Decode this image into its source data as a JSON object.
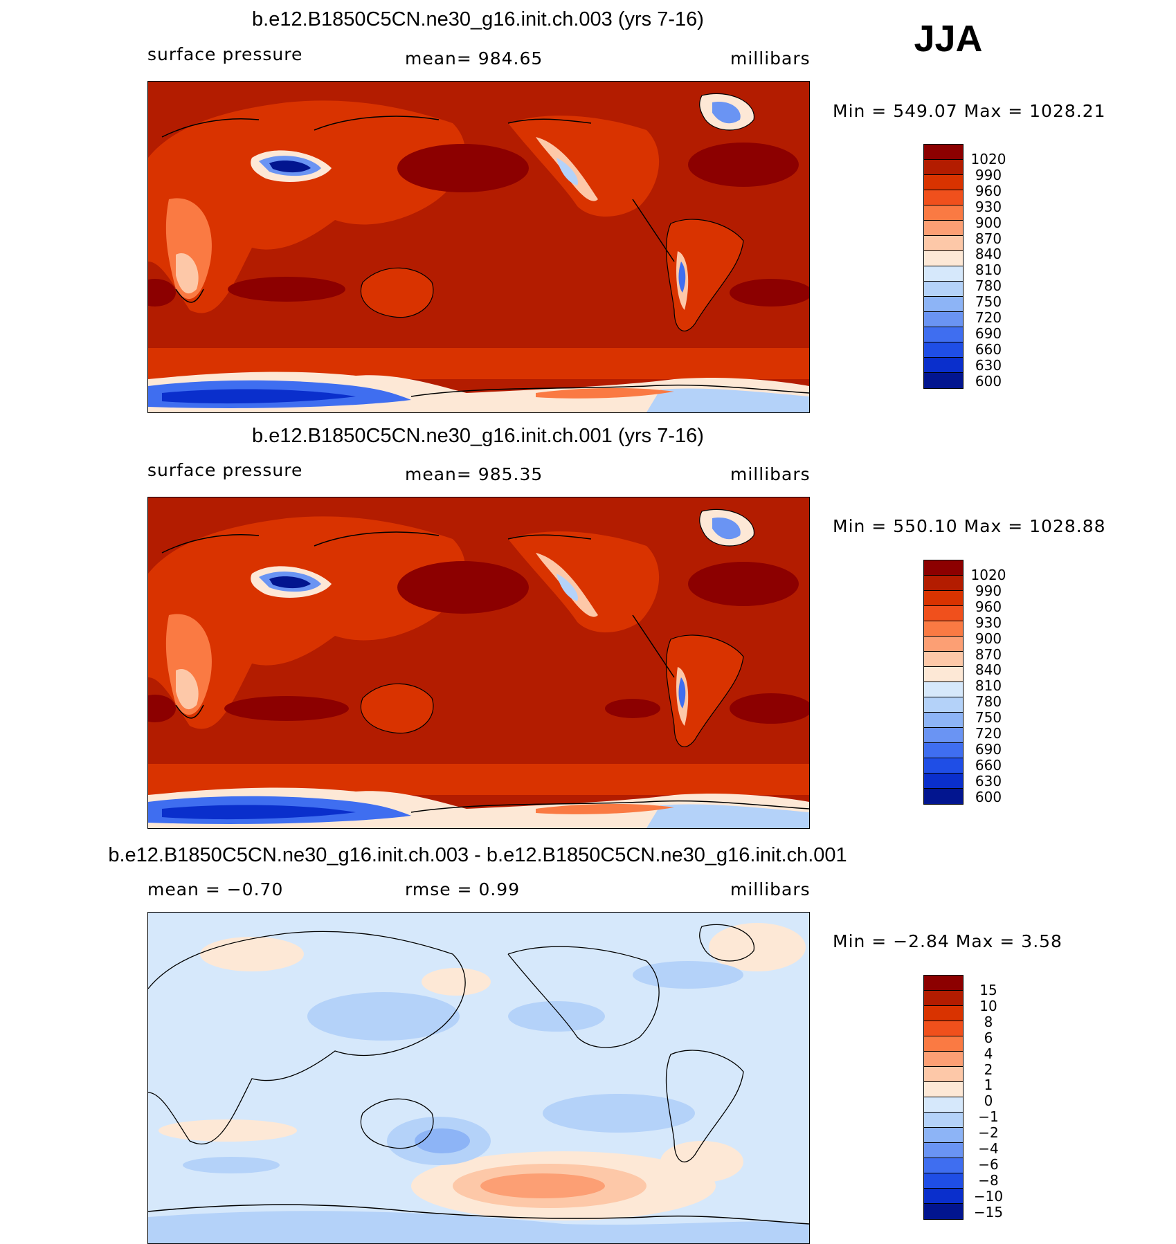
{
  "season": "JJA",
  "colors": {
    "abs_scale": [
      "#8c0000",
      "#b31c00",
      "#d93300",
      "#f0501c",
      "#fa7a43",
      "#fc9f74",
      "#fdc8a8",
      "#fde8d6",
      "#d6e8fb",
      "#b4d2f9",
      "#8db4f6",
      "#6a94f3",
      "#3f6ef0",
      "#1f4ee6",
      "#0a2fcc",
      "#02158f"
    ],
    "diff_scale": [
      "#8c0000",
      "#b31c00",
      "#d93300",
      "#f0501c",
      "#fa7a43",
      "#fc9f74",
      "#fdc8a8",
      "#fde8d6",
      "#d6e8fb",
      "#b4d2f9",
      "#8db4f6",
      "#6a94f3",
      "#3f6ef0",
      "#1f4ee6",
      "#0a2fcc",
      "#02158f"
    ]
  },
  "panels": [
    {
      "title": "b.e12.B1850C5CN.ne30_g16.init.ch.003 (yrs 7-16)",
      "left_label": "surface pressure",
      "center_label": "mean=  984.65",
      "right_label": "millibars",
      "minmax": "Min  =  549.07  Max  =  1028.21",
      "levels": [
        "1020",
        "990",
        "960",
        "930",
        "900",
        "870",
        "840",
        "810",
        "780",
        "750",
        "720",
        "690",
        "660",
        "630",
        "600"
      ]
    },
    {
      "title": "b.e12.B1850C5CN.ne30_g16.init.ch.001 (yrs 7-16)",
      "left_label": "surface pressure",
      "center_label": "mean=  985.35",
      "right_label": "millibars",
      "minmax": "Min  =  550.10  Max  =  1028.88",
      "levels": [
        "1020",
        "990",
        "960",
        "930",
        "900",
        "870",
        "840",
        "810",
        "780",
        "750",
        "720",
        "690",
        "660",
        "630",
        "600"
      ]
    },
    {
      "title": "b.e12.B1850C5CN.ne30_g16.init.ch.003 - b.e12.B1850C5CN.ne30_g16.init.ch.001",
      "left_label": "mean  =   −0.70",
      "center_label": "rmse  =     0.99",
      "right_label": "millibars",
      "minmax": "Min  =    −2.84  Max  =     3.58",
      "levels": [
        "15",
        "10",
        "8",
        "6",
        "4",
        "2",
        "1",
        "0",
        "−1",
        "−2",
        "−4",
        "−6",
        "−8",
        "−10",
        "−15"
      ]
    }
  ]
}
